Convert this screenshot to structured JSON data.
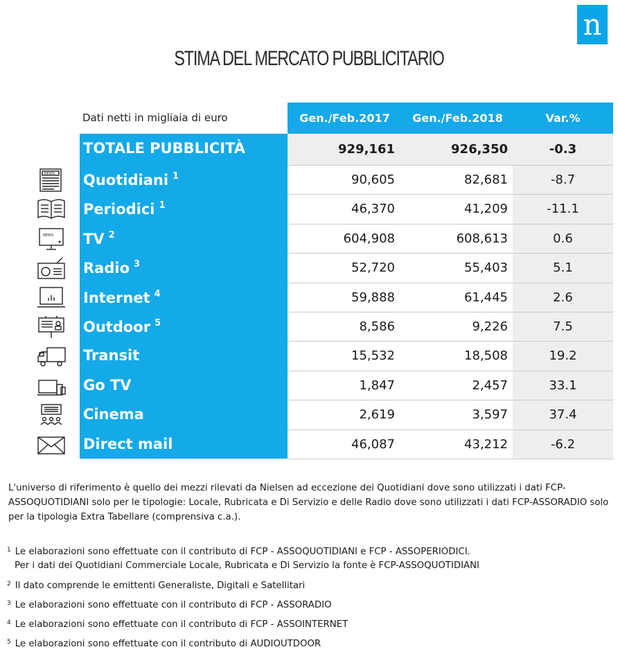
{
  "logo_letter": "n",
  "title": "STIMA DEL MERCATO PUBBLICITARIO",
  "table": {
    "caption": "Dati netti in migliaia di euro",
    "headers": [
      "Gen./Feb.2017",
      "Gen./Feb.2018",
      "Var.%"
    ],
    "total": {
      "label": "TOTALE PUBBLICITÀ",
      "v2017": "929,161",
      "v2018": "926,350",
      "var": "-0.3"
    },
    "rows": [
      {
        "label": "Quotidiani",
        "sup": "1",
        "icon": "newspaper-icon",
        "v2017": "90,605",
        "v2018": "82,681",
        "var": "-8.7"
      },
      {
        "label": "Periodici",
        "sup": "1",
        "icon": "open-book-icon",
        "v2017": "46,370",
        "v2018": "41,209",
        "var": "-11.1"
      },
      {
        "label": "TV",
        "sup": "2",
        "icon": "tv-icon",
        "v2017": "604,908",
        "v2018": "608,613",
        "var": "0.6"
      },
      {
        "label": "Radio",
        "sup": "3",
        "icon": "radio-icon",
        "v2017": "52,720",
        "v2018": "55,403",
        "var": "5.1"
      },
      {
        "label": "Internet",
        "sup": "4",
        "icon": "laptop-icon",
        "v2017": "59,888",
        "v2018": "61,445",
        "var": "2.6"
      },
      {
        "label": "Outdoor",
        "sup": "5",
        "icon": "billboard-icon",
        "v2017": "8,586",
        "v2018": "9,226",
        "var": "7.5"
      },
      {
        "label": "Transit",
        "sup": "",
        "icon": "truck-icon",
        "v2017": "15,532",
        "v2018": "18,508",
        "var": "19.2"
      },
      {
        "label": "Go TV",
        "sup": "",
        "icon": "devices-icon",
        "v2017": "1,847",
        "v2018": "2,457",
        "var": "33.1"
      },
      {
        "label": "Cinema",
        "sup": "",
        "icon": "cinema-icon",
        "v2017": "2,619",
        "v2018": "3,597",
        "var": "37.4"
      },
      {
        "label": "Direct mail",
        "sup": "",
        "icon": "envelope-icon",
        "v2017": "46,087",
        "v2018": "43,212",
        "var": "-6.2"
      }
    ]
  },
  "note": "L'universo di riferimento è quello dei mezzi rilevati da Nielsen ad eccezione dei Quotidiani dove sono utilizzati i dati FCP-ASSOQUOTIDIANI solo per le tipologie: Locale, Rubricata e Di Servizio e delle Radio dove sono utilizzati i dati FCP-ASSORADIO solo per la tipologia Extra Tabellare (comprensiva c.a.).",
  "footnotes": [
    {
      "mark": "1",
      "text": "Le elaborazioni sono effettuate con il contributo di FCP - ASSOQUOTIDIANI e FCP - ASSOPERIODICI."
    },
    {
      "mark": "",
      "text": "Per i dati dei Quotidiani Commerciale Locale, Rubricata e Di Servizio la fonte è  FCP-ASSOQUOTIDIANI"
    },
    {
      "mark": "2",
      "text": "Il dato comprende le emittenti Generaliste, Digitali e Satellitari"
    },
    {
      "mark": "3",
      "text": "Le elaborazioni sono effettuate con il contributo di FCP - ASSORADIO"
    },
    {
      "mark": "4",
      "text": "Le elaborazioni sono effettuate con il contributo di FCP - ASSOINTERNET"
    },
    {
      "mark": "5",
      "text": "Le elaborazioni sono effettuate con il contributo di AUDIOUTDOOR"
    }
  ]
}
